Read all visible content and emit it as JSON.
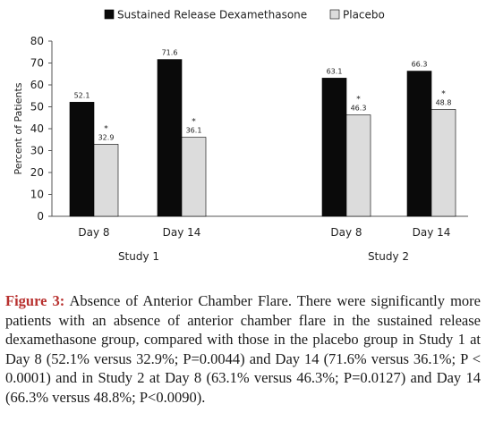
{
  "chart_data": {
    "type": "bar",
    "ylabel": "Percent of Patients",
    "ylim": [
      0,
      80
    ],
    "yticks": [
      0,
      10,
      20,
      30,
      40,
      50,
      60,
      70,
      80
    ],
    "grid": false,
    "legend_position": "top",
    "groups": [
      {
        "name": "Study 1",
        "categories": [
          "Day 8",
          "Day 14"
        ]
      },
      {
        "name": "Study 2",
        "categories": [
          "Day 8",
          "Day 14"
        ]
      }
    ],
    "series": [
      {
        "name": "Sustained Release Dexamethasone",
        "color": "#0a0a0a",
        "values": [
          52.1,
          71.6,
          63.1,
          66.3
        ],
        "labels": [
          "52.1",
          "71.6",
          "63.1",
          "66.3"
        ]
      },
      {
        "name": "Placebo",
        "color": "#dcdcdc",
        "values": [
          32.9,
          36.1,
          46.3,
          48.8
        ],
        "labels": [
          "32.9",
          "36.1",
          "46.3",
          "48.8"
        ],
        "marks": [
          "*",
          "*",
          "*",
          "*"
        ]
      }
    ]
  },
  "caption": {
    "label": "Figure 3:",
    "text": "Absence of Anterior Chamber Flare. There were significantly more patients with an absence of anterior chamber flare in the sustained release dexamethasone group, compared with those in the placebo group in Study 1 at Day 8 (52.1% versus 32.9%; P=0.0044) and Day 14 (71.6% versus 36.1%; P < 0.0001) and in Study 2 at Day 8 (63.1% versus 46.3%; P=0.0127) and Day 14 (66.3% versus 48.8%; P<0.0090)."
  }
}
